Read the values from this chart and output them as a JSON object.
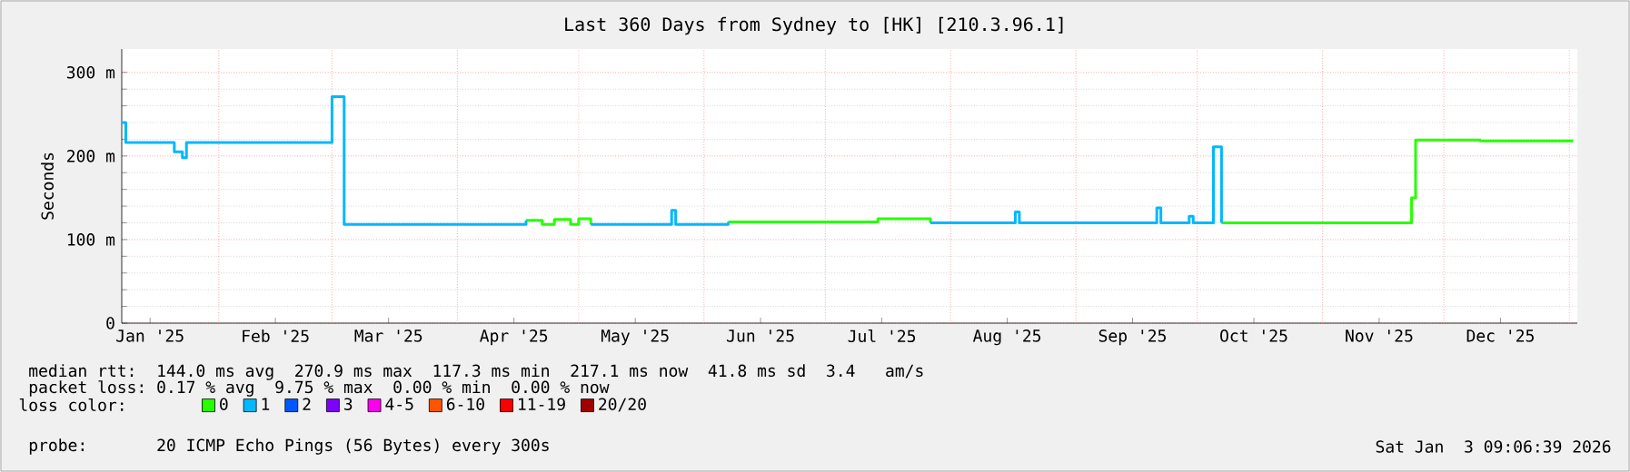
{
  "chart_data": {
    "type": "step",
    "title": "Last 360 Days from Sydney to [HK] [210.3.96.1]",
    "ylabel": "Seconds",
    "xlim": [
      "2025-01-08",
      "2026-01-03"
    ],
    "xticks": [
      {
        "value": "2025-01-15",
        "label": "Jan '25"
      },
      {
        "value": "2025-02-15",
        "label": "Feb '25"
      },
      {
        "value": "2025-03-15",
        "label": "Mar '25"
      },
      {
        "value": "2025-04-15",
        "label": "Apr '25"
      },
      {
        "value": "2025-05-15",
        "label": "May '25"
      },
      {
        "value": "2025-06-15",
        "label": "Jun '25"
      },
      {
        "value": "2025-07-15",
        "label": "Jul '25"
      },
      {
        "value": "2025-08-15",
        "label": "Aug '25"
      },
      {
        "value": "2025-09-15",
        "label": "Sep '25"
      },
      {
        "value": "2025-10-15",
        "label": "Oct '25"
      },
      {
        "value": "2025-11-15",
        "label": "Nov '25"
      },
      {
        "value": "2025-12-15",
        "label": "Dec '25"
      }
    ],
    "ylim": [
      0,
      328
    ],
    "yticks": [
      0,
      {
        "value": 100,
        "label": "100 m"
      },
      {
        "value": 200,
        "label": "200 m"
      },
      {
        "value": 300,
        "label": "300 m"
      }
    ],
    "grid": true,
    "legend": "bottom",
    "legend_title": "loss color:",
    "series": [
      {
        "name": "0",
        "color": "#26ff00",
        "x": [
          "2025-04-18",
          "2025-04-22",
          "2025-04-25",
          "2025-04-29",
          "2025-05-01",
          "2025-05-04",
          "2025-05-05",
          "2025-06-07",
          "2025-07-14",
          "2025-07-27",
          "2025-07-28",
          "2025-10-07",
          "2025-11-23",
          "2025-11-24",
          "2025-12-10",
          "2026-01-02"
        ],
        "values": [
          123,
          118,
          124,
          118,
          125,
          118,
          null,
          121,
          125,
          120,
          null,
          120,
          150,
          219,
          218,
          218
        ]
      },
      {
        "name": "1",
        "color": "#00b8ff",
        "x": [
          "2025-01-08",
          "2025-01-09",
          "2025-01-21",
          "2025-01-23",
          "2025-01-24",
          "2025-03-01",
          "2025-03-04",
          "2025-04-18",
          "2025-04-19",
          "2025-05-04",
          "2025-05-24",
          "2025-05-25",
          "2025-06-07",
          "2025-06-08",
          "2025-07-27",
          "2025-08-17",
          "2025-08-18",
          "2025-09-21",
          "2025-09-22",
          "2025-09-29",
          "2025-09-30",
          "2025-10-05",
          "2025-10-07"
        ],
        "values": [
          240,
          216,
          205,
          198,
          216,
          271,
          118,
          123,
          null,
          118,
          135,
          118,
          121,
          null,
          120,
          133,
          120,
          138,
          120,
          128,
          120,
          211,
          120
        ]
      },
      {
        "name": "2",
        "color": "#0059ff"
      },
      {
        "name": "3",
        "color": "#7e00ff"
      },
      {
        "name": "4-5",
        "color": "#ff00ee"
      },
      {
        "name": "6-10",
        "color": "#ff5500"
      },
      {
        "name": "11-19",
        "color": "#ff0000"
      },
      {
        "name": "20/20",
        "color": "#a00000"
      }
    ],
    "annotations": [
      "median rtt:  144.0 ms avg  270.9 ms max  117.3 ms min  217.1 ms now  41.8 ms sd  3.4   am/s",
      "packet loss: 0.17 % avg  9.75 % max  0.00 % min  0.00 % now",
      "probe:       20 ICMP Echo Pings (56 Bytes) every 300s",
      "Sat Jan  3 09:06:39 2026"
    ]
  }
}
